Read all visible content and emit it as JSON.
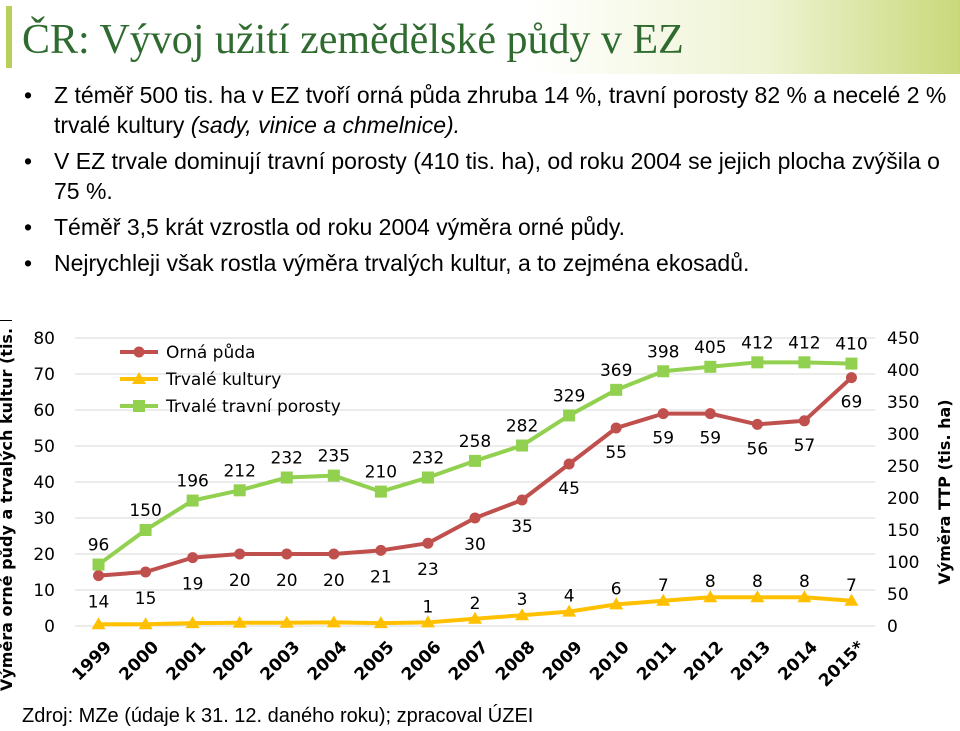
{
  "slide": {
    "title": "ČR: Vývoj užití zemědělské půdy v EZ",
    "bullets": [
      {
        "text": "Z téměř 500 tis. ha v EZ tvoří orná půda zhruba 14 %, travní porosty 82 % a necelé 2 % trvalé kultury ",
        "italic": "(sady, vinice a chmelnice)."
      },
      {
        "text": "V EZ trvale dominují travní porosty (410 tis. ha), od roku 2004 se jejich plocha zvýšila o 75 %.",
        "italic": ""
      },
      {
        "text": "Téměř 3,5 krát vzrostla od roku 2004 výměra orné půdy.",
        "italic": ""
      },
      {
        "text": "Nejrychleji však rostla výměra trvalých kultur, a to zejména ekosadů.",
        "italic": ""
      }
    ],
    "source": "Zdroj: MZe (údaje k 31. 12. daného roku); zpracoval ÚZEI"
  },
  "chart_data": {
    "type": "line",
    "categories": [
      "1999",
      "2000",
      "2001",
      "2002",
      "2003",
      "2004",
      "2005",
      "2006",
      "2007",
      "2008",
      "2009",
      "2010",
      "2011",
      "2012",
      "2013",
      "2014",
      "2015*"
    ],
    "ylabel_left": "Výměra orné půdy a trvalých kultur (tis. ha)",
    "ylabel_right": "Výměra TTP (tis. ha)",
    "ylim_left": [
      0,
      80
    ],
    "yticks_left": [
      0,
      10,
      20,
      30,
      40,
      50,
      60,
      70,
      80
    ],
    "ylim_right": [
      0,
      450
    ],
    "yticks_right": [
      0,
      50,
      100,
      150,
      200,
      250,
      300,
      350,
      400,
      450
    ],
    "grid": true,
    "legend_position": "top-left",
    "series": [
      {
        "name": "Orná půda",
        "axis": "left",
        "color": "#c0504d",
        "marker": "circle",
        "values": [
          14,
          15,
          19,
          20,
          20,
          20,
          21,
          23,
          30,
          35,
          45,
          55,
          59,
          59,
          56,
          57,
          69
        ],
        "labels": [
          "14",
          "15",
          "19",
          "20",
          "20",
          "20",
          "21",
          "23",
          "30",
          "35",
          "45",
          "55",
          "59",
          "59",
          "56",
          "57",
          "69"
        ]
      },
      {
        "name": "Trvalé kultury",
        "axis": "left",
        "color": "#ffc000",
        "marker": "triangle",
        "values": [
          0.5,
          0.5,
          0.8,
          0.9,
          0.9,
          1.0,
          0.8,
          1,
          2,
          3,
          4,
          6,
          7,
          8,
          8,
          8,
          7
        ],
        "labels": [
          "",
          "",
          "",
          "",
          "",
          "",
          "",
          "1",
          "2",
          "3",
          "4",
          "6",
          "7",
          "8",
          "8",
          "8",
          "7"
        ]
      },
      {
        "name": "Trvalé travní porosty",
        "axis": "right",
        "color": "#92d050",
        "marker": "square",
        "values": [
          96,
          150,
          196,
          212,
          232,
          235,
          210,
          232,
          258,
          282,
          329,
          369,
          398,
          405,
          412,
          412,
          410
        ],
        "labels": [
          "96",
          "150",
          "196",
          "212",
          "232",
          "235",
          "210",
          "232",
          "258",
          "282",
          "329",
          "369",
          "398",
          "405",
          "412",
          "412",
          "410"
        ]
      }
    ]
  }
}
